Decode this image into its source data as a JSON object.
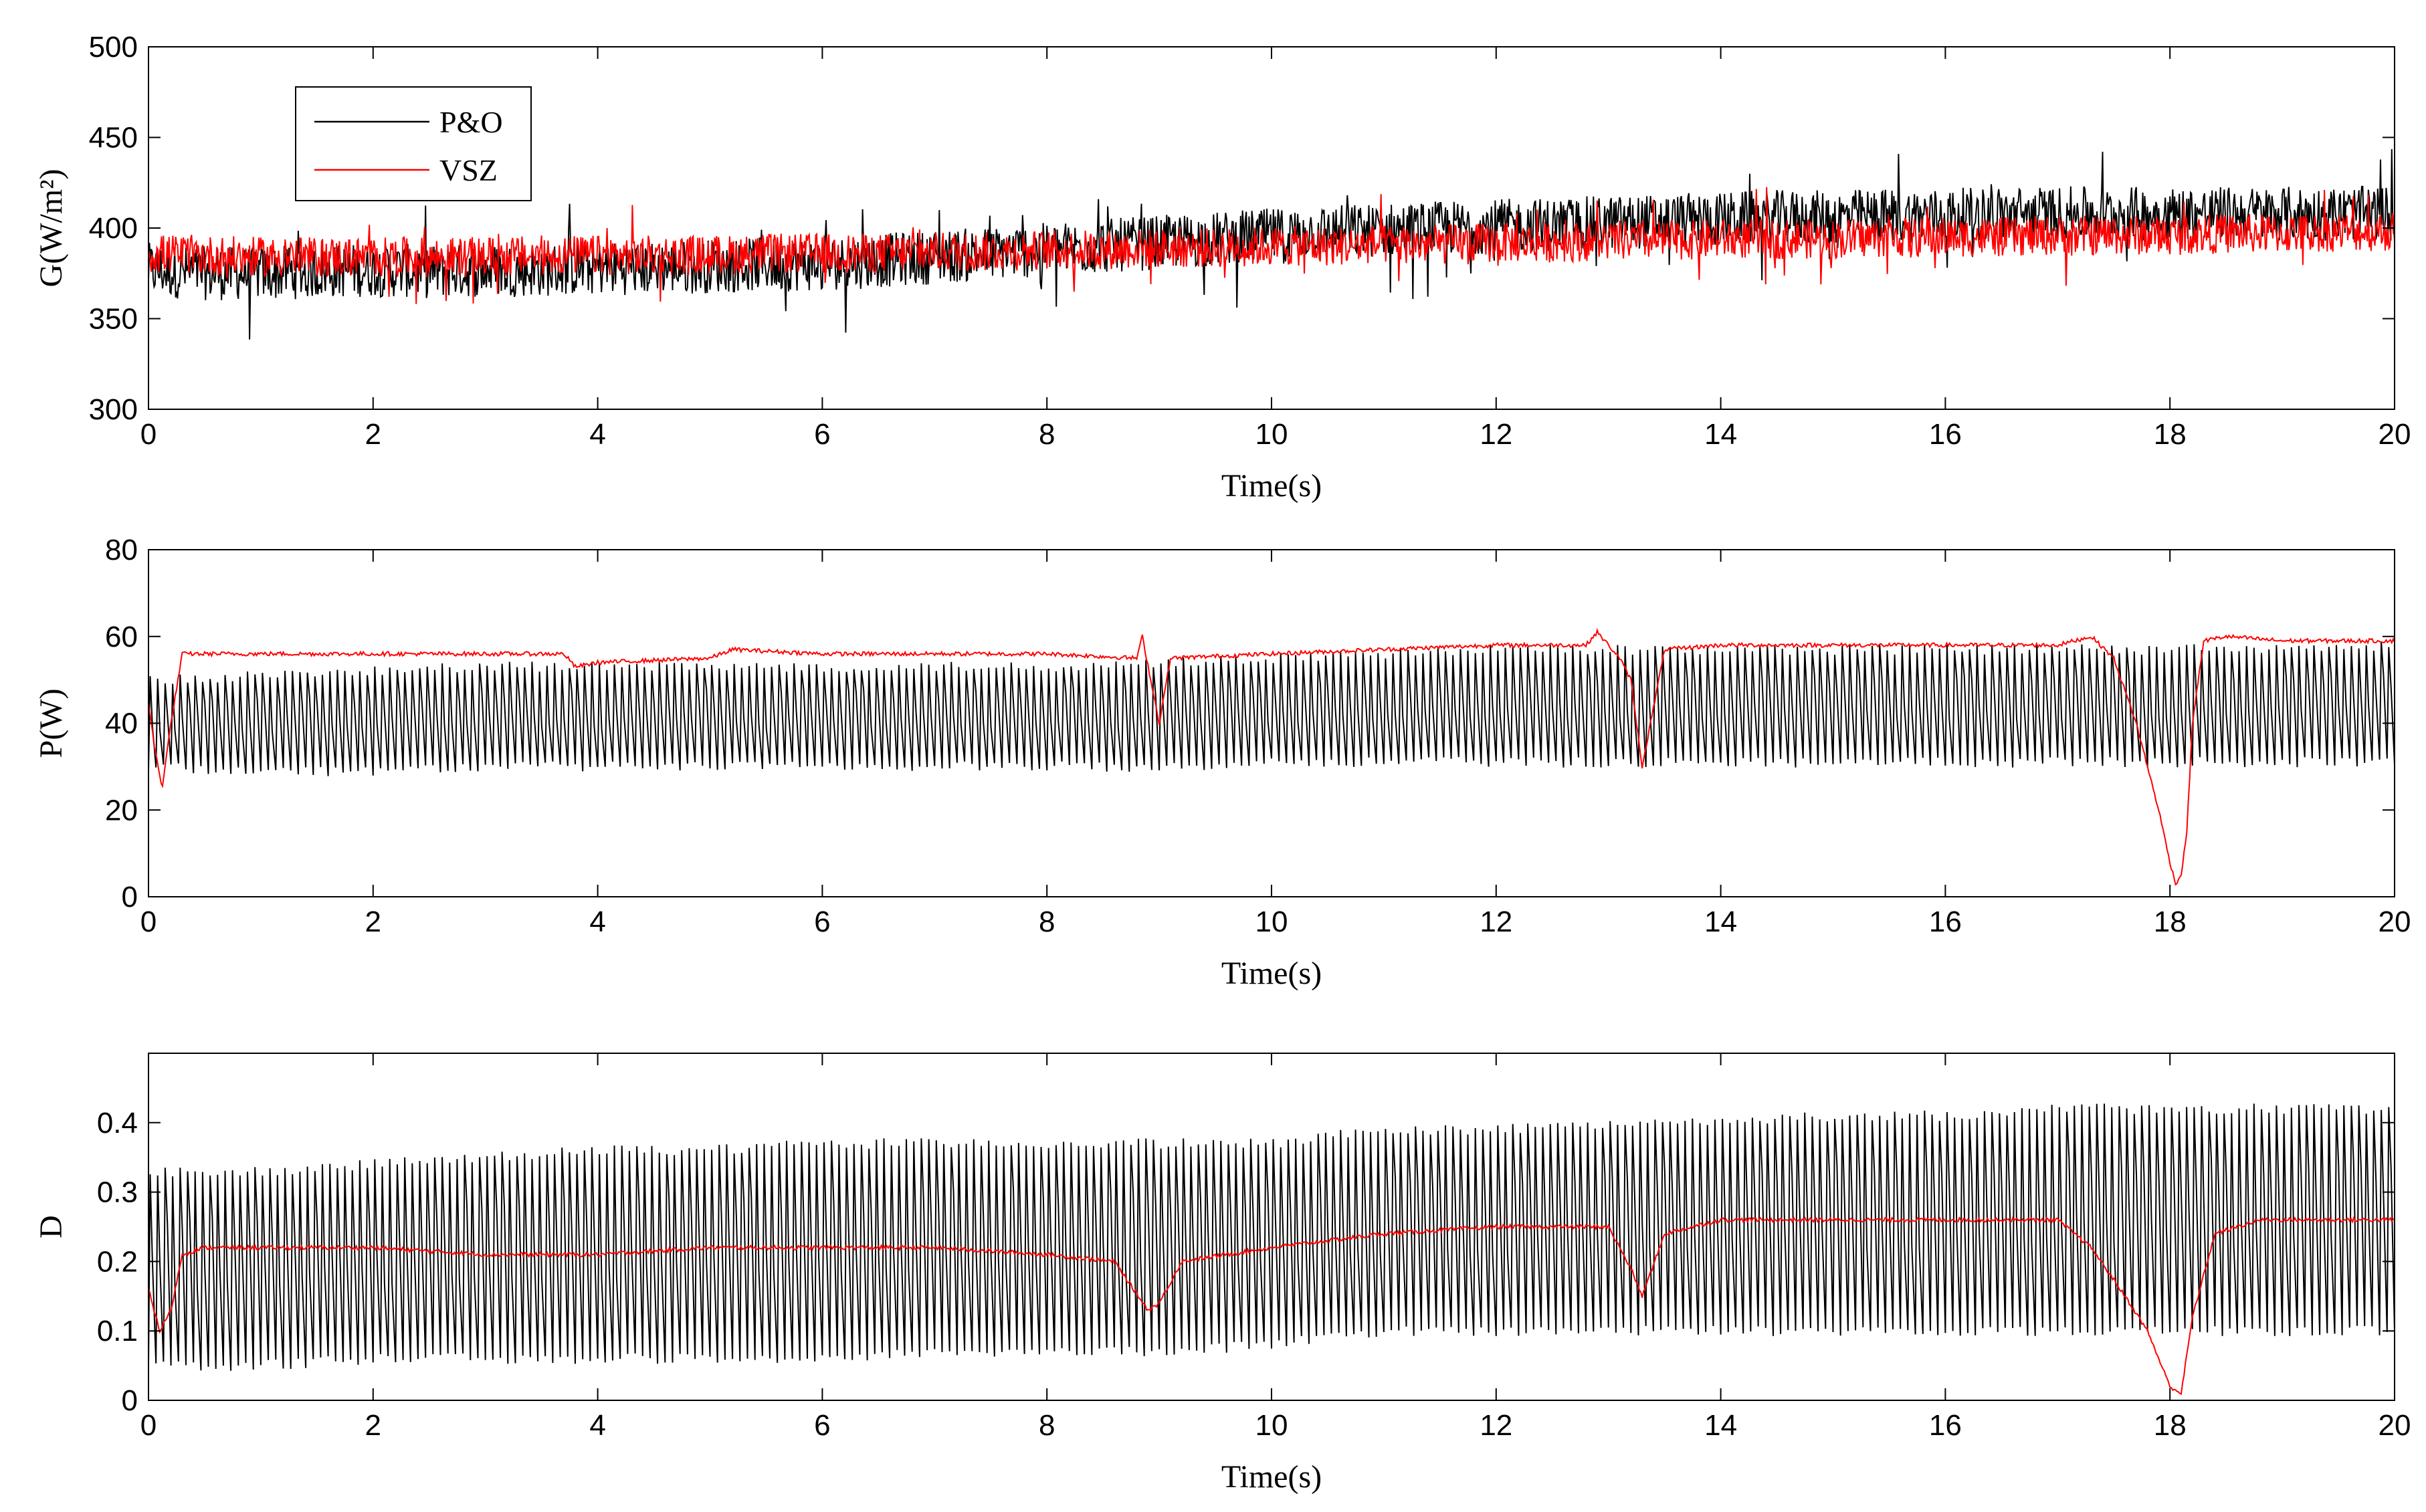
{
  "chart_data": [
    {
      "type": "line",
      "id": "g",
      "xlabel": "Time(s)",
      "ylabel": "G(W/m²)",
      "xlim": [
        0,
        20
      ],
      "ylim": [
        300,
        500
      ],
      "xticks": [
        0,
        2,
        4,
        6,
        8,
        10,
        12,
        14,
        16,
        18,
        20
      ],
      "yticks": [
        300,
        350,
        400,
        450,
        500
      ],
      "legend": {
        "position": "top-left",
        "entries": [
          "P&O",
          "VSZ"
        ]
      },
      "series": [
        {
          "name": "P&O",
          "color": "#000000",
          "x": [
            0,
            0.5,
            1,
            1.5,
            2,
            2.5,
            3,
            3.5,
            4,
            4.5,
            5,
            5.5,
            6,
            6.5,
            7,
            7.5,
            8,
            8.5,
            9,
            9.5,
            10,
            10.5,
            11,
            11.5,
            12,
            12.5,
            13,
            13.5,
            14,
            14.5,
            15,
            15.5,
            16,
            16.5,
            17,
            17.5,
            18,
            18.5,
            19,
            19.5,
            20
          ],
          "values": [
            377,
            375,
            375,
            376,
            377,
            376,
            377,
            377,
            378,
            378,
            379,
            380,
            380,
            382,
            384,
            386,
            388,
            390,
            392,
            394,
            396,
            398,
            399,
            400,
            401,
            402,
            403,
            404,
            405,
            406,
            406,
            407,
            407,
            408,
            408,
            408,
            408,
            408,
            408,
            408,
            408
          ],
          "noise": 30
        },
        {
          "name": "VSZ",
          "color": "#ff0000",
          "x": [
            0,
            0.5,
            1,
            1.5,
            2,
            2.5,
            3,
            3.5,
            4,
            4.5,
            5,
            5.5,
            6,
            6.5,
            7,
            7.5,
            8,
            8.5,
            9,
            9.5,
            10,
            10.5,
            11,
            11.5,
            12,
            12.5,
            13,
            13.5,
            14,
            14.5,
            15,
            15.5,
            16,
            16.5,
            17,
            17.5,
            18,
            18.5,
            19,
            19.5,
            20
          ],
          "values": [
            386,
            385,
            384,
            384,
            384,
            384,
            384,
            385,
            385,
            385,
            385,
            386,
            386,
            386,
            387,
            387,
            388,
            388,
            389,
            389,
            390,
            390,
            391,
            391,
            392,
            392,
            393,
            393,
            394,
            394,
            394,
            395,
            395,
            395,
            396,
            396,
            396,
            397,
            397,
            398,
            398
          ],
          "noise": 22
        }
      ]
    },
    {
      "type": "line",
      "id": "p",
      "xlabel": "Time(s)",
      "ylabel": "P(W)",
      "xlim": [
        0,
        20
      ],
      "ylim": [
        0,
        80
      ],
      "xticks": [
        0,
        2,
        4,
        6,
        8,
        10,
        12,
        14,
        16,
        18,
        20
      ],
      "yticks": [
        0,
        20,
        40,
        60,
        80
      ],
      "series": [
        {
          "name": "P&O",
          "color": "#000000",
          "style": "oscillation",
          "low": [
            30,
            29,
            29,
            30,
            30,
            30,
            30,
            30,
            30,
            30,
            31,
            31,
            31,
            31,
            31,
            31,
            31,
            31,
            31,
            31,
            31
          ],
          "high": [
            50,
            51,
            52,
            53,
            53,
            53,
            53,
            53,
            53,
            54,
            55,
            56,
            57,
            57,
            57,
            57,
            57,
            57,
            57,
            57,
            58
          ]
        },
        {
          "name": "VSZ",
          "color": "#ff0000",
          "x": [
            0,
            0.05,
            0.12,
            0.2,
            0.3,
            1,
            2,
            3,
            3.7,
            3.8,
            4,
            5,
            5.2,
            6,
            7,
            8,
            8.8,
            8.85,
            9,
            9.1,
            10,
            11,
            12,
            12.8,
            12.9,
            13.1,
            13.2,
            13.3,
            13.5,
            14,
            15,
            16,
            17,
            17.3,
            17.5,
            17.7,
            17.8,
            17.9,
            18,
            18.05,
            18.1,
            18.15,
            18.2,
            18.3,
            18.5,
            19,
            20
          ],
          "values": [
            45,
            35,
            25,
            40,
            56,
            56,
            56,
            56,
            56,
            53,
            54,
            55,
            57,
            56,
            56,
            56,
            55,
            60,
            40,
            55,
            56,
            57,
            58,
            58,
            61,
            55,
            50,
            30,
            57,
            58,
            58,
            58,
            58,
            60,
            55,
            40,
            30,
            20,
            8,
            3,
            5,
            15,
            40,
            59,
            60,
            59,
            59
          ]
        }
      ]
    },
    {
      "type": "line",
      "id": "d",
      "xlabel": "Time(s)",
      "ylabel": "D",
      "xlim": [
        0,
        20
      ],
      "ylim": [
        0,
        0.5
      ],
      "xticks": [
        0,
        2,
        4,
        6,
        8,
        10,
        12,
        14,
        16,
        18,
        20
      ],
      "yticks": [
        0,
        0.1,
        0.2,
        0.3,
        0.4
      ],
      "series": [
        {
          "name": "P&O",
          "color": "#000000",
          "style": "oscillation",
          "low": [
            0.05,
            0.05,
            0.06,
            0.06,
            0.06,
            0.06,
            0.06,
            0.07,
            0.07,
            0.07,
            0.08,
            0.1,
            0.1,
            0.1,
            0.1,
            0.1,
            0.1,
            0.1,
            0.1,
            0.1,
            0.1
          ],
          "high": [
            0.33,
            0.33,
            0.34,
            0.35,
            0.36,
            0.36,
            0.37,
            0.37,
            0.37,
            0.37,
            0.37,
            0.39,
            0.39,
            0.4,
            0.4,
            0.41,
            0.41,
            0.42,
            0.42,
            0.42,
            0.42
          ]
        },
        {
          "name": "VSZ",
          "color": "#ff0000",
          "x": [
            0,
            0.1,
            0.2,
            0.3,
            0.5,
            1,
            2,
            3,
            4,
            5,
            6,
            7,
            8,
            8.6,
            8.9,
            9.0,
            9.2,
            10,
            11,
            12,
            13,
            13.2,
            13.3,
            13.5,
            14,
            15,
            16,
            17,
            17.3,
            17.6,
            17.8,
            17.9,
            18,
            18.1,
            18.2,
            18.4,
            18.8,
            19,
            20
          ],
          "values": [
            0.16,
            0.1,
            0.13,
            0.21,
            0.22,
            0.22,
            0.22,
            0.21,
            0.21,
            0.22,
            0.22,
            0.22,
            0.21,
            0.2,
            0.13,
            0.14,
            0.2,
            0.22,
            0.24,
            0.25,
            0.25,
            0.19,
            0.15,
            0.24,
            0.26,
            0.26,
            0.26,
            0.26,
            0.22,
            0.15,
            0.1,
            0.06,
            0.02,
            0.01,
            0.12,
            0.24,
            0.26,
            0.26,
            0.26
          ]
        }
      ]
    }
  ]
}
